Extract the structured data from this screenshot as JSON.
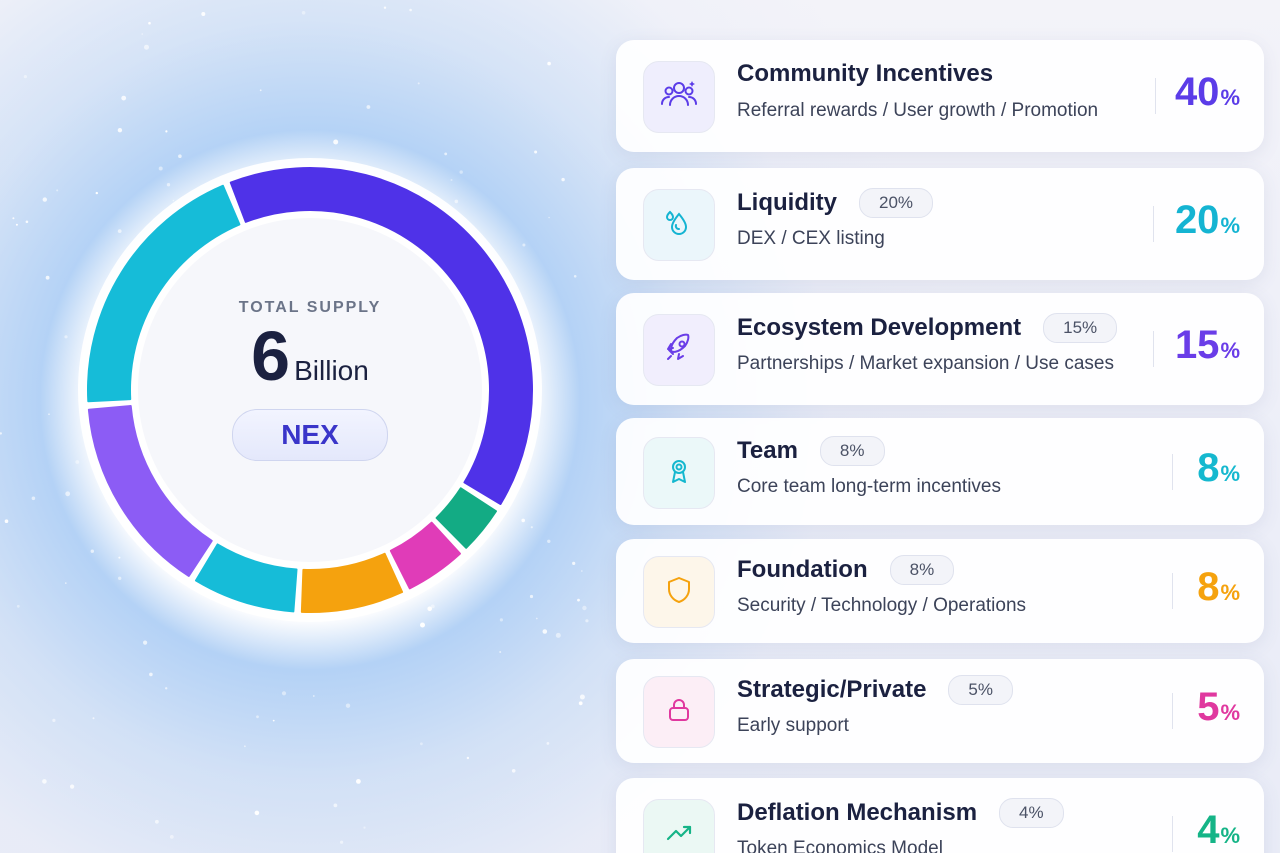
{
  "header": {
    "supply_label": "TOTAL SUPPLY",
    "supply_number": "6",
    "supply_unit": "Billion",
    "token": "NEX"
  },
  "cards": [
    {
      "title": "Community Incentives",
      "badge": "",
      "subtitle": "Referral rewards / User growth / Promotion",
      "pct": "40",
      "pct_symbol": "%",
      "icon": "users-icon",
      "color": "#5b3ce8",
      "icon_bg": "#efeefd"
    },
    {
      "title": "Liquidity",
      "badge": "20%",
      "subtitle": "DEX / CEX listing",
      "pct": "20",
      "pct_symbol": "%",
      "icon": "droplet-icon",
      "color": "#14b4d2",
      "icon_bg": "#ebf6fb"
    },
    {
      "title": "Ecosystem Development",
      "badge": "15%",
      "subtitle": "Partnerships / Market expansion / Use cases",
      "pct": "15",
      "pct_symbol": "%",
      "icon": "rocket-icon",
      "color": "#6a3de8",
      "icon_bg": "#f1eefd"
    },
    {
      "title": "Team",
      "badge": "8%",
      "subtitle": "Core team long-term incentives",
      "pct": "8",
      "pct_symbol": "%",
      "icon": "award-icon",
      "color": "#15b8cf",
      "icon_bg": "#ebf8f9"
    },
    {
      "title": "Foundation",
      "badge": "8%",
      "subtitle": "Security / Technology / Operations",
      "pct": "8",
      "pct_symbol": "%",
      "icon": "shield-icon",
      "color": "#f5a20e",
      "icon_bg": "#fdf6ea"
    },
    {
      "title": "Strategic/Private",
      "badge": "5%",
      "subtitle": "Early support",
      "pct": "5",
      "pct_symbol": "%",
      "icon": "lock-icon",
      "color": "#e0389f",
      "icon_bg": "#fceef6"
    },
    {
      "title": "Deflation Mechanism",
      "badge": "4%",
      "subtitle": "Token Economics Model",
      "pct": "4",
      "pct_symbol": "%",
      "icon": "trend-up-icon",
      "color": "#15b487",
      "icon_bg": "#ebf8f4"
    }
  ],
  "chart_data": {
    "type": "pie",
    "style": "donut",
    "title": "",
    "center_text": [
      "TOTAL SUPPLY",
      "6 Billion",
      "NEX"
    ],
    "categories": [
      "Community Incentives",
      "Liquidity",
      "Ecosystem Development",
      "Team",
      "Foundation",
      "Strategic/Private",
      "Deflation Mechanism"
    ],
    "values": [
      40,
      20,
      15,
      8,
      8,
      5,
      4
    ],
    "unit": "%",
    "colors": {
      "Community Incentives": "#4f32e8",
      "Deflation Mechanism": "#13ab84",
      "Strategic/Private": "#e03cb8",
      "Foundation": "#f5a20e",
      "Team": "#16bcd8",
      "Ecosystem Development": "#8c5cf5",
      "Liquidity": "#16bcd8"
    },
    "clockwise_order_from_top": [
      "Community Incentives",
      "Deflation Mechanism",
      "Strategic/Private",
      "Foundation",
      "Team",
      "Ecosystem Development",
      "Liquidity"
    ],
    "legend": "none"
  }
}
